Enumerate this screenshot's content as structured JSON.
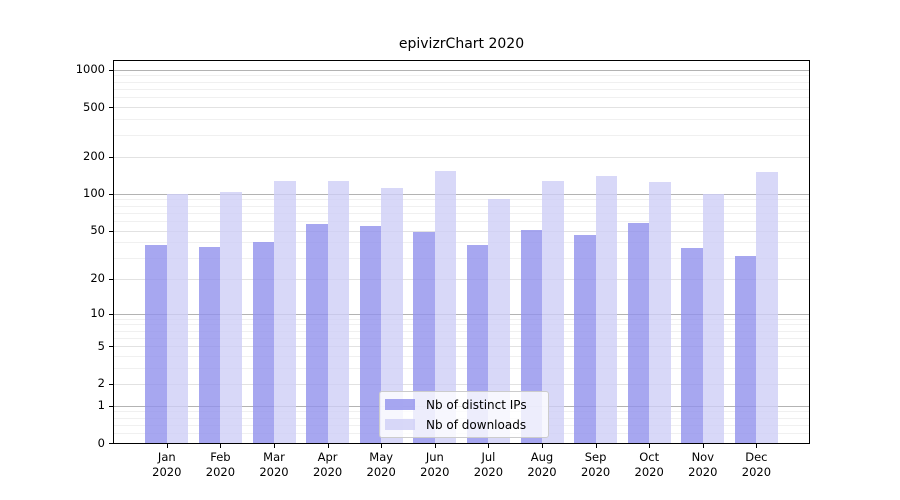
{
  "title": "epivizrChart 2020",
  "chart_data": {
    "type": "bar",
    "title": "epivizrChart 2020",
    "yscale": "log1p (symlog-like, y position proportional to log10(1+value))",
    "grid": true,
    "legend_position": "lower center",
    "categories": [
      "Jan 2020",
      "Feb 2020",
      "Mar 2020",
      "Apr 2020",
      "May 2020",
      "Jun 2020",
      "Jul 2020",
      "Aug 2020",
      "Sep 2020",
      "Oct 2020",
      "Nov 2020",
      "Dec 2020"
    ],
    "series": [
      {
        "name": "Nb of distinct IPs",
        "color": "#9191ec",
        "values": [
          38,
          37,
          40,
          57,
          55,
          49,
          38,
          51,
          46,
          58,
          36,
          31
        ]
      },
      {
        "name": "Nb of downloads",
        "color": "#cecef6",
        "values": [
          100,
          104,
          126,
          126,
          111,
          153,
          90,
          126,
          139,
          124,
          100,
          150
        ]
      }
    ],
    "bar_alpha": 0.8,
    "y_ticks": [
      0,
      1,
      2,
      5,
      10,
      20,
      50,
      100,
      200,
      500,
      1000
    ],
    "ylim": [
      0,
      1200
    ],
    "xlabel": "",
    "ylabel": ""
  },
  "colors": {
    "major_grid": "#b3b3b3",
    "mid_grid": "#e2e2e2",
    "minor_grid": "#f0f0f0",
    "spine": "#000000",
    "legend_border": "#cccccc"
  }
}
